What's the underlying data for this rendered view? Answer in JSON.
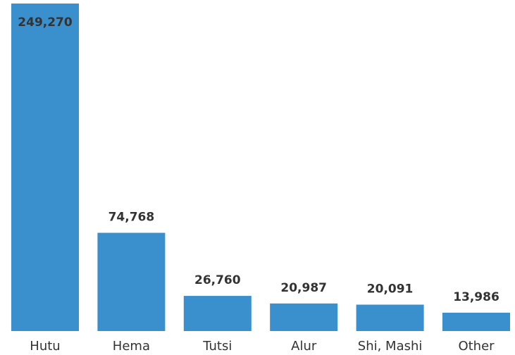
{
  "chart_data": {
    "type": "bar",
    "categories": [
      "Hutu",
      "Hema",
      "Tutsi",
      "Alur",
      "Shi, Mashi",
      "Other"
    ],
    "values": [
      249270,
      74768,
      26760,
      20987,
      20091,
      13986
    ],
    "value_labels": [
      "249,270",
      "74,768",
      "26,760",
      "20,987",
      "20,091",
      "13,986"
    ],
    "color": "#3a8fcd"
  }
}
